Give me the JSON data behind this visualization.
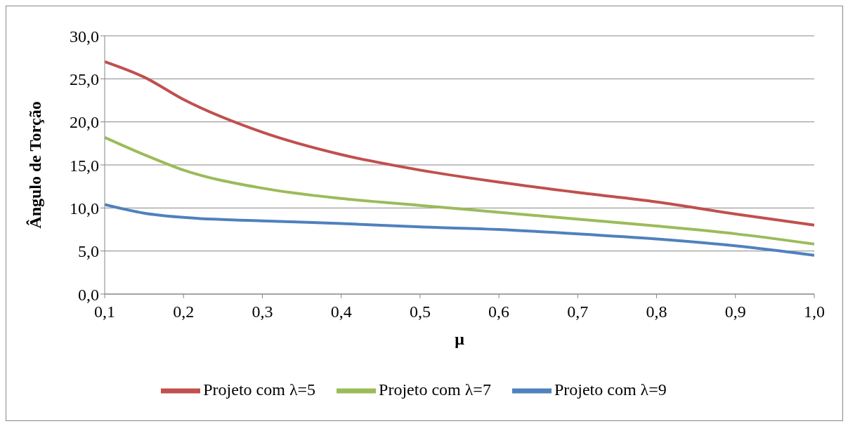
{
  "chart_data": {
    "type": "line",
    "xlabel": "μ",
    "ylabel": "Ângulo de Torção",
    "x": [
      0.1,
      0.15,
      0.2,
      0.3,
      0.4,
      0.5,
      0.6,
      0.7,
      0.8,
      0.9,
      1.0
    ],
    "series": [
      {
        "name": "Projeto com λ=5",
        "color": "#c0504d",
        "values": [
          27.0,
          25.2,
          22.6,
          18.8,
          16.2,
          14.4,
          13.0,
          11.8,
          10.7,
          9.3,
          8.0
        ]
      },
      {
        "name": "Projeto com λ=7",
        "color": "#9bbb59",
        "values": [
          18.2,
          16.2,
          14.4,
          12.3,
          11.1,
          10.3,
          9.5,
          8.7,
          7.9,
          7.0,
          5.8
        ]
      },
      {
        "name": "Projeto com λ=9",
        "color": "#4f81bd",
        "values": [
          10.4,
          9.4,
          8.9,
          8.5,
          8.2,
          7.8,
          7.5,
          7.0,
          6.4,
          5.6,
          4.5
        ]
      }
    ],
    "xlim": [
      0.1,
      1.0
    ],
    "xticks": [
      {
        "value": 0.1,
        "label": "0,1"
      },
      {
        "value": 0.2,
        "label": "0,2"
      },
      {
        "value": 0.3,
        "label": "0,3"
      },
      {
        "value": 0.4,
        "label": "0,4"
      },
      {
        "value": 0.5,
        "label": "0,5"
      },
      {
        "value": 0.6,
        "label": "0,6"
      },
      {
        "value": 0.7,
        "label": "0,7"
      },
      {
        "value": 0.8,
        "label": "0,8"
      },
      {
        "value": 0.9,
        "label": "0,9"
      },
      {
        "value": 1.0,
        "label": "1,0"
      }
    ],
    "ylim": [
      0,
      30
    ],
    "yticks": [
      {
        "value": 0,
        "label": "0,0"
      },
      {
        "value": 5,
        "label": "5,0"
      },
      {
        "value": 10,
        "label": "10,0"
      },
      {
        "value": 15,
        "label": "15,0"
      },
      {
        "value": 20,
        "label": "20,0"
      },
      {
        "value": 25,
        "label": "25,0"
      },
      {
        "value": 30,
        "label": "30,0"
      }
    ],
    "grid": "y",
    "legend": "bottom"
  }
}
